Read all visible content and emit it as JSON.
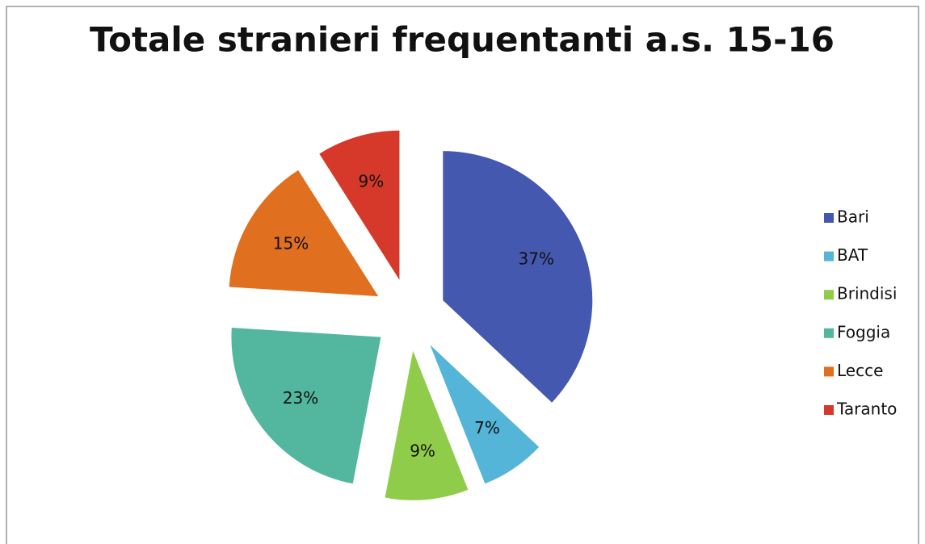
{
  "chart_data": {
    "type": "pie",
    "title": "Totale stranieri frequentanti a.s. 15-16",
    "categories": [
      "Bari",
      "BAT",
      "Brindisi",
      "Foggia",
      "Lecce",
      "Taranto"
    ],
    "values": [
      37,
      7,
      9,
      23,
      15,
      9
    ],
    "value_labels": [
      "37%",
      "7%",
      "9%",
      "23%",
      "15%",
      "9%"
    ],
    "colors": [
      "#4558b0",
      "#55b5d8",
      "#8fcc4a",
      "#53b69e",
      "#e07020",
      "#d6392a"
    ],
    "legend": "right"
  }
}
